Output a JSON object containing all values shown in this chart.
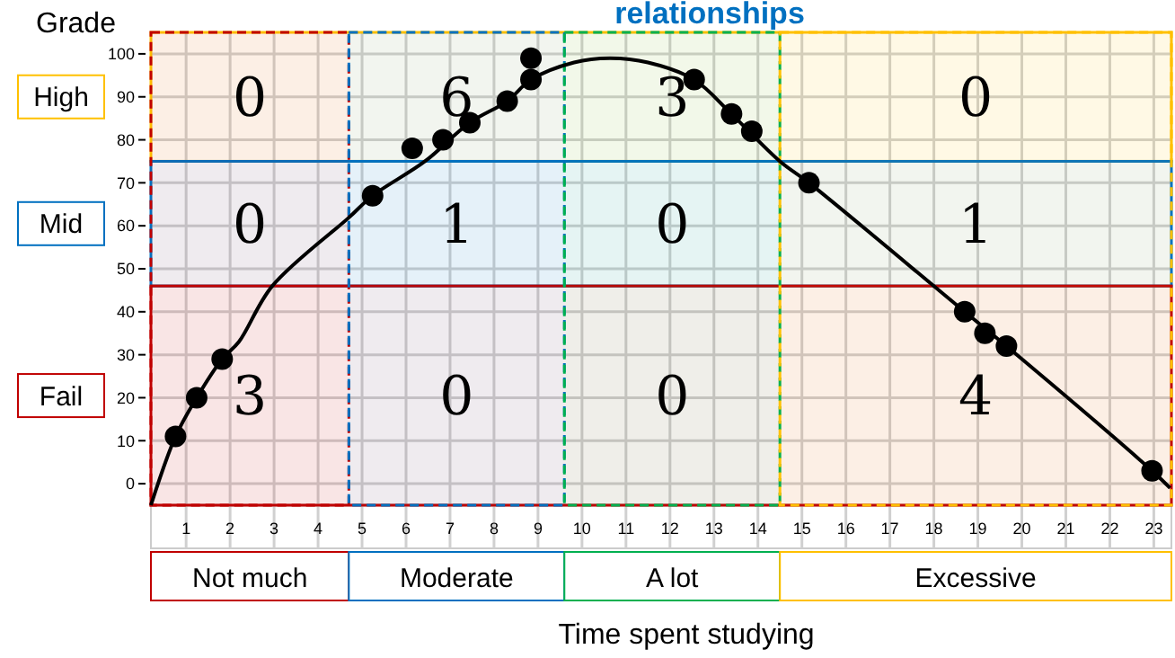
{
  "chart_data": {
    "type": "scatter",
    "title": "relationships",
    "xlabel": "Time spent studying",
    "ylabel": "Grade",
    "xlim": [
      0.2,
      23.4
    ],
    "xticks": [
      1,
      2,
      3,
      4,
      5,
      6,
      7,
      8,
      9,
      10,
      11,
      12,
      13,
      14,
      15,
      16,
      17,
      18,
      19,
      20,
      21,
      22,
      23
    ],
    "ylim": [
      -5,
      105
    ],
    "yticks": [
      0,
      10,
      20,
      30,
      40,
      50,
      60,
      70,
      80,
      90,
      100
    ],
    "grid": true,
    "marker": "circle",
    "series": [
      {
        "color": "#000000",
        "x": [
          0.76,
          1.24,
          1.82,
          5.24,
          6.14,
          6.84,
          7.45,
          8.3,
          8.84,
          8.84,
          12.55,
          13.4,
          13.86,
          15.16,
          18.7,
          19.16,
          19.65,
          22.96
        ],
        "values": [
          11,
          20,
          29,
          67,
          78,
          80,
          84,
          89,
          99,
          94,
          94,
          86,
          82,
          70,
          40,
          35,
          32,
          3
        ]
      },
      {
        "type": "line",
        "marker": "none",
        "color": "#000000",
        "x": [
          0.2,
          0.76,
          1.24,
          1.82,
          2.2,
          2.96,
          4.71,
          5.24,
          6.43,
          7.45,
          8.3,
          8.84,
          9.82,
          10.63,
          11.5,
          12.55,
          13.4,
          14.5,
          15.16,
          18.7,
          19.65,
          22.96,
          23.37
        ],
        "values": [
          -5,
          11,
          20,
          29,
          33,
          46,
          62,
          67,
          75,
          84,
          89,
          94,
          98,
          99,
          98,
          94,
          86,
          75,
          70,
          40,
          32,
          3,
          -1
        ]
      }
    ],
    "bands": [
      {
        "axis": "y",
        "from": 75,
        "to": 105,
        "label": "High",
        "color": "#ffc000"
      },
      {
        "axis": "y",
        "from": 46,
        "to": 75,
        "label": "Mid",
        "color": "#0070c0"
      },
      {
        "axis": "y",
        "from": -5,
        "to": 46,
        "label": "Fail",
        "color": "#c00000"
      },
      {
        "axis": "x",
        "from": 0.2,
        "to": 4.7,
        "label": "Not much",
        "color": "#c00000"
      },
      {
        "axis": "x",
        "from": 4.7,
        "to": 9.6,
        "label": "Moderate",
        "color": "#0070c0"
      },
      {
        "axis": "x",
        "from": 9.6,
        "to": 14.5,
        "label": "A lot",
        "color": "#00b050"
      },
      {
        "axis": "x",
        "from": 14.5,
        "to": 23.4,
        "label": "Excessive",
        "color": "#ffc000"
      }
    ],
    "annotations": [
      "0",
      "6",
      "3",
      "0",
      "0",
      "1",
      "0",
      "1",
      "3",
      "0",
      "0",
      "4"
    ]
  }
}
